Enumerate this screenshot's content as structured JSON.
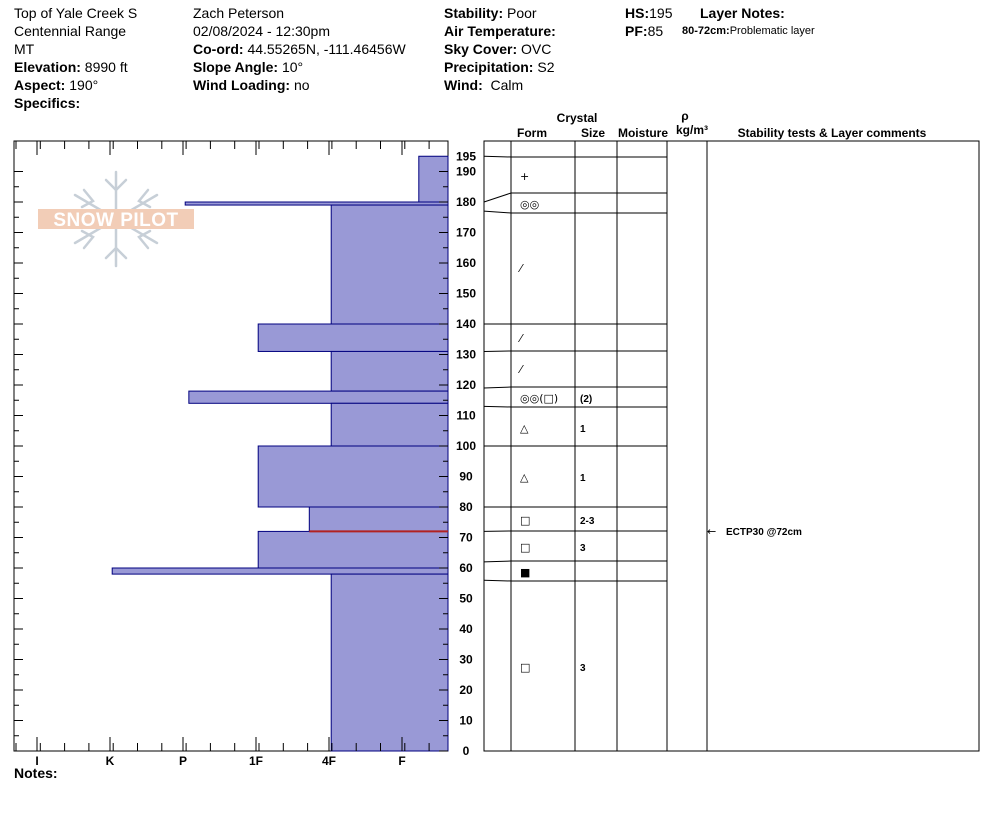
{
  "header": {
    "col1": {
      "location": "Top of Yale Creek S",
      "range": "Centennial Range",
      "state": "MT",
      "elevation_label": "Elevation:",
      "elevation_value": "8990 ft",
      "aspect_label": "Aspect:",
      "aspect_value": "190°",
      "specifics_label": "Specifics:"
    },
    "col2": {
      "observer": "Zach Peterson",
      "datetime": "02/08/2024 - 12:30pm",
      "coord_label": "Co-ord:",
      "coord_value": "44.55265N, -111.46456W",
      "slope_label": "Slope Angle:",
      "slope_value": "10°",
      "wind_loading_label": "Wind Loading:",
      "wind_loading_value": "no"
    },
    "col3": {
      "stability_label": "Stability:",
      "stability_value": "Poor",
      "air_temp_label": "Air Temperature:",
      "sky_label": "Sky Cover:",
      "sky_value": "OVC",
      "precip_label": "Precipitation:",
      "precip_value": "S2",
      "wind_label": "Wind:",
      "wind_value": "Calm"
    },
    "col4": {
      "hs_label": "HS:",
      "hs_value": "195",
      "pf_label": "PF:",
      "pf_value": "85",
      "layer_notes_label": "Layer Notes:",
      "layer_note_range": "80-72cm:",
      "layer_note_text": "Problematic layer"
    }
  },
  "logo_text": "SNOW PILOT",
  "notes_label": "Notes:",
  "columns": {
    "crystal": "Crystal",
    "form": "Form",
    "size": "Size",
    "moisture": "Moisture",
    "rho": "ρ",
    "density_unit": "kg/m³",
    "stability": "Stability tests & Layer comments"
  },
  "colors": {
    "hardness_fill": "#9999d6",
    "hardness_edge": "#00007f",
    "critical_line": "#b22222"
  },
  "chart_data": {
    "type": "bar",
    "title": "",
    "ylabel": "",
    "xlabel": "",
    "ylim": [
      0,
      195
    ],
    "hardness_categories": [
      "I",
      "K",
      "P",
      "1F",
      "4F",
      "F"
    ],
    "height_ticks": [
      0,
      10,
      20,
      30,
      40,
      50,
      60,
      70,
      80,
      90,
      100,
      110,
      120,
      130,
      140,
      150,
      160,
      170,
      180,
      190,
      195
    ],
    "hardness_layers": [
      {
        "top": 195,
        "bottom": 180,
        "hardness_index": 0.4
      },
      {
        "top": 180,
        "bottom": 179,
        "hardness_index": 3.6
      },
      {
        "top": 179,
        "bottom": 140,
        "hardness_index": 1.6
      },
      {
        "top": 140,
        "bottom": 131,
        "hardness_index": 2.6
      },
      {
        "top": 131,
        "bottom": 118,
        "hardness_index": 1.6
      },
      {
        "top": 118,
        "bottom": 114,
        "hardness_index": 3.55
      },
      {
        "top": 114,
        "bottom": 100,
        "hardness_index": 1.6
      },
      {
        "top": 100,
        "bottom": 80,
        "hardness_index": 2.6
      },
      {
        "top": 80,
        "bottom": 72,
        "hardness_index": 1.9
      },
      {
        "top": 72,
        "bottom": 60,
        "hardness_index": 2.6
      },
      {
        "top": 60,
        "bottom": 58,
        "hardness_index": 4.6
      },
      {
        "top": 58,
        "bottom": 0,
        "hardness_index": 1.6
      }
    ],
    "critical_layer_height": 72,
    "layer_boundaries": [
      195,
      180,
      177,
      140,
      131,
      119,
      113,
      100,
      80,
      72,
      62,
      56
    ],
    "crystals": [
      {
        "height": 189,
        "form": "+",
        "size": ""
      },
      {
        "height": 180,
        "form": "◎◎",
        "size": ""
      },
      {
        "height": 158,
        "form": "⁄",
        "size": ""
      },
      {
        "height": 135,
        "form": "⁄",
        "size": ""
      },
      {
        "height": 125,
        "form": "⁄",
        "size": ""
      },
      {
        "height": 116,
        "form": "◎◎(□)",
        "size": "(2)"
      },
      {
        "height": 106.5,
        "form": "△",
        "size": "1"
      },
      {
        "height": 90,
        "form": "△",
        "size": "1"
      },
      {
        "height": 76,
        "form": "□",
        "size": "2-3"
      },
      {
        "height": 67,
        "form": "□",
        "size": "3"
      },
      {
        "height": 59,
        "form": "■",
        "size": ""
      },
      {
        "height": 28,
        "form": "□",
        "size": "3"
      }
    ],
    "stability_tests": [
      {
        "height": 72,
        "label": "ECTP30 @72cm"
      }
    ]
  }
}
